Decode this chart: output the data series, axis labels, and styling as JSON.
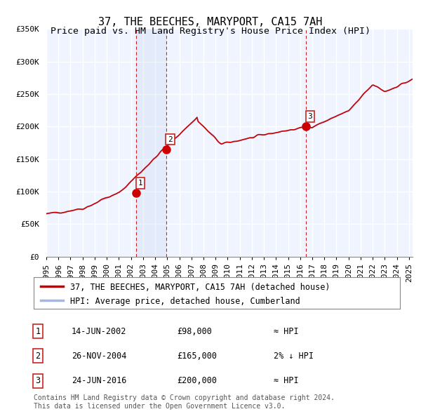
{
  "title": "37, THE BEECHES, MARYPORT, CA15 7AH",
  "subtitle": "Price paid vs. HM Land Registry's House Price Index (HPI)",
  "ylim": [
    0,
    350000
  ],
  "yticks": [
    0,
    50000,
    100000,
    150000,
    200000,
    250000,
    300000,
    350000
  ],
  "ytick_labels": [
    "£0",
    "£50K",
    "£100K",
    "£150K",
    "£200K",
    "£250K",
    "£300K",
    "£350K"
  ],
  "xlim_start": 1995.0,
  "xlim_end": 2025.3,
  "background_color": "#ffffff",
  "plot_bg_color": "#f0f4ff",
  "grid_color": "#ffffff",
  "hpi_line_color": "#a0b8e8",
  "price_line_color": "#cc0000",
  "sale_marker_color": "#cc0000",
  "sale_points": [
    {
      "year": 2002.45,
      "price": 98000,
      "label": "1"
    },
    {
      "year": 2004.9,
      "price": 165000,
      "label": "2"
    },
    {
      "year": 2016.48,
      "price": 200000,
      "label": "3"
    }
  ],
  "vline_dashes": [
    2002.45,
    2004.9,
    2016.48
  ],
  "shade_region": [
    2002.45,
    2004.9
  ],
  "legend_entries": [
    "37, THE BEECHES, MARYPORT, CA15 7AH (detached house)",
    "HPI: Average price, detached house, Cumberland"
  ],
  "table_rows": [
    {
      "num": "1",
      "date": "14-JUN-2002",
      "price": "£98,000",
      "vs_hpi": "≈ HPI"
    },
    {
      "num": "2",
      "date": "26-NOV-2004",
      "price": "£165,000",
      "vs_hpi": "2% ↓ HPI"
    },
    {
      "num": "3",
      "date": "24-JUN-2016",
      "price": "£200,000",
      "vs_hpi": "≈ HPI"
    }
  ],
  "footer": "Contains HM Land Registry data © Crown copyright and database right 2024.\nThis data is licensed under the Open Government Licence v3.0.",
  "title_fontsize": 11,
  "subtitle_fontsize": 9.5,
  "axis_fontsize": 8,
  "legend_fontsize": 8.5,
  "table_fontsize": 8.5,
  "footer_fontsize": 7
}
